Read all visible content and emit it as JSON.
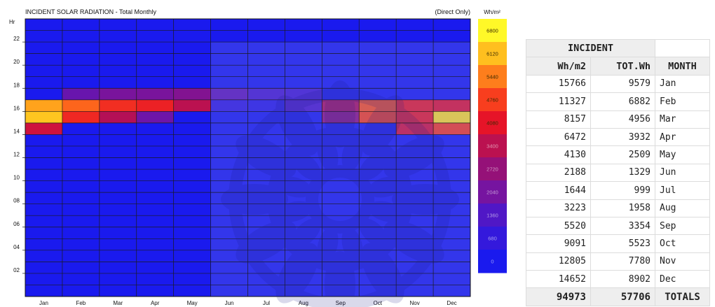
{
  "chart_data": {
    "type": "heatmap",
    "title": "INCIDENT SOLAR RADIATION - Total Monthly",
    "subtitle": "(Direct Only)",
    "ylabel": "Hr",
    "x": [
      "Jan",
      "Feb",
      "Mar",
      "Apr",
      "May",
      "Jun",
      "Jul",
      "Aug",
      "Sep",
      "Oct",
      "Nov",
      "Dec"
    ],
    "y_ticks": [
      "22",
      "20",
      "18",
      "16",
      "14",
      "12",
      "10",
      "08",
      "06",
      "04",
      "02"
    ],
    "y_hours": [
      23,
      22,
      21,
      20,
      19,
      18,
      17,
      16,
      15,
      14,
      13,
      12,
      11,
      10,
      9,
      8,
      7,
      6,
      5,
      4,
      3,
      2,
      1,
      0
    ],
    "z_unit": "Wh/m²",
    "z_range": [
      0,
      6800
    ],
    "colorbar_ticks": [
      "6800",
      "6120",
      "5440",
      "4760",
      "4080",
      "3400",
      "2720",
      "2040",
      "1360",
      "680",
      "0"
    ],
    "values": [
      [
        0,
        0,
        0,
        0,
        0,
        0,
        0,
        0,
        0,
        0,
        0,
        0
      ],
      [
        0,
        0,
        0,
        0,
        0,
        0,
        0,
        0,
        0,
        0,
        0,
        0
      ],
      [
        0,
        0,
        0,
        0,
        0,
        0,
        0,
        0,
        0,
        0,
        0,
        0
      ],
      [
        0,
        0,
        0,
        0,
        0,
        0,
        0,
        0,
        0,
        0,
        0,
        0
      ],
      [
        0,
        0,
        0,
        0,
        0,
        0,
        0,
        0,
        0,
        0,
        0,
        0
      ],
      [
        0,
        0,
        0,
        0,
        0,
        0,
        0,
        0,
        0,
        0,
        0,
        0
      ],
      [
        0,
        1800,
        2100,
        2100,
        2300,
        1600,
        1200,
        1100,
        0,
        0,
        0,
        0
      ],
      [
        5800,
        5200,
        4500,
        4300,
        3400,
        600,
        400,
        1300,
        3200,
        5000,
        4200,
        4000
      ],
      [
        6200,
        4400,
        3300,
        1900,
        0,
        0,
        0,
        0,
        2600,
        4800,
        4200,
        6500
      ],
      [
        3700,
        0,
        0,
        0,
        0,
        0,
        0,
        0,
        0,
        0,
        3800,
        4700
      ],
      [
        0,
        0,
        0,
        0,
        0,
        0,
        0,
        0,
        0,
        0,
        0,
        0
      ],
      [
        0,
        0,
        0,
        0,
        0,
        0,
        0,
        0,
        0,
        0,
        0,
        0
      ],
      [
        0,
        0,
        0,
        0,
        0,
        0,
        0,
        0,
        0,
        0,
        0,
        0
      ],
      [
        0,
        0,
        0,
        0,
        0,
        0,
        0,
        0,
        0,
        0,
        0,
        0
      ],
      [
        0,
        0,
        0,
        0,
        0,
        0,
        0,
        0,
        0,
        0,
        0,
        0
      ],
      [
        0,
        0,
        0,
        0,
        0,
        0,
        0,
        0,
        0,
        0,
        0,
        0
      ],
      [
        0,
        0,
        0,
        0,
        0,
        0,
        0,
        0,
        0,
        0,
        0,
        0
      ],
      [
        0,
        0,
        0,
        0,
        0,
        0,
        0,
        0,
        0,
        0,
        0,
        0
      ],
      [
        0,
        0,
        0,
        0,
        0,
        0,
        0,
        0,
        0,
        0,
        0,
        0
      ],
      [
        0,
        0,
        0,
        0,
        0,
        0,
        0,
        0,
        0,
        0,
        0,
        0
      ],
      [
        0,
        0,
        0,
        0,
        0,
        0,
        0,
        0,
        0,
        0,
        0,
        0
      ],
      [
        0,
        0,
        0,
        0,
        0,
        0,
        0,
        0,
        0,
        0,
        0,
        0
      ],
      [
        0,
        0,
        0,
        0,
        0,
        0,
        0,
        0,
        0,
        0,
        0,
        0
      ],
      [
        0,
        0,
        0,
        0,
        0,
        0,
        0,
        0,
        0,
        0,
        0,
        0
      ]
    ],
    "overlay_shaded_months": [
      "Jun",
      "Jul",
      "Aug",
      "Sep",
      "Oct",
      "Nov",
      "Dec"
    ],
    "grid": true
  },
  "table": {
    "group_header": "INCIDENT",
    "col_wh": "Wh/m2",
    "col_tot": "TOT.Wh",
    "col_month": "MONTH",
    "rows": [
      {
        "wh": "15766",
        "tot": "9579",
        "month": "Jan"
      },
      {
        "wh": "11327",
        "tot": "6882",
        "month": "Feb"
      },
      {
        "wh": "8157",
        "tot": "4956",
        "month": "Mar"
      },
      {
        "wh": "6472",
        "tot": "3932",
        "month": "Apr"
      },
      {
        "wh": "4130",
        "tot": "2509",
        "month": "May"
      },
      {
        "wh": "2188",
        "tot": "1329",
        "month": "Jun"
      },
      {
        "wh": "1644",
        "tot": "999",
        "month": "Jul"
      },
      {
        "wh": "3223",
        "tot": "1958",
        "month": "Aug"
      },
      {
        "wh": "5520",
        "tot": "3354",
        "month": "Sep"
      },
      {
        "wh": "9091",
        "tot": "5523",
        "month": "Oct"
      },
      {
        "wh": "12805",
        "tot": "7780",
        "month": "Nov"
      },
      {
        "wh": "14652",
        "tot": "8902",
        "month": "Dec"
      }
    ],
    "totals": {
      "wh": "94973",
      "tot": "57706",
      "label": "TOTALS"
    }
  }
}
